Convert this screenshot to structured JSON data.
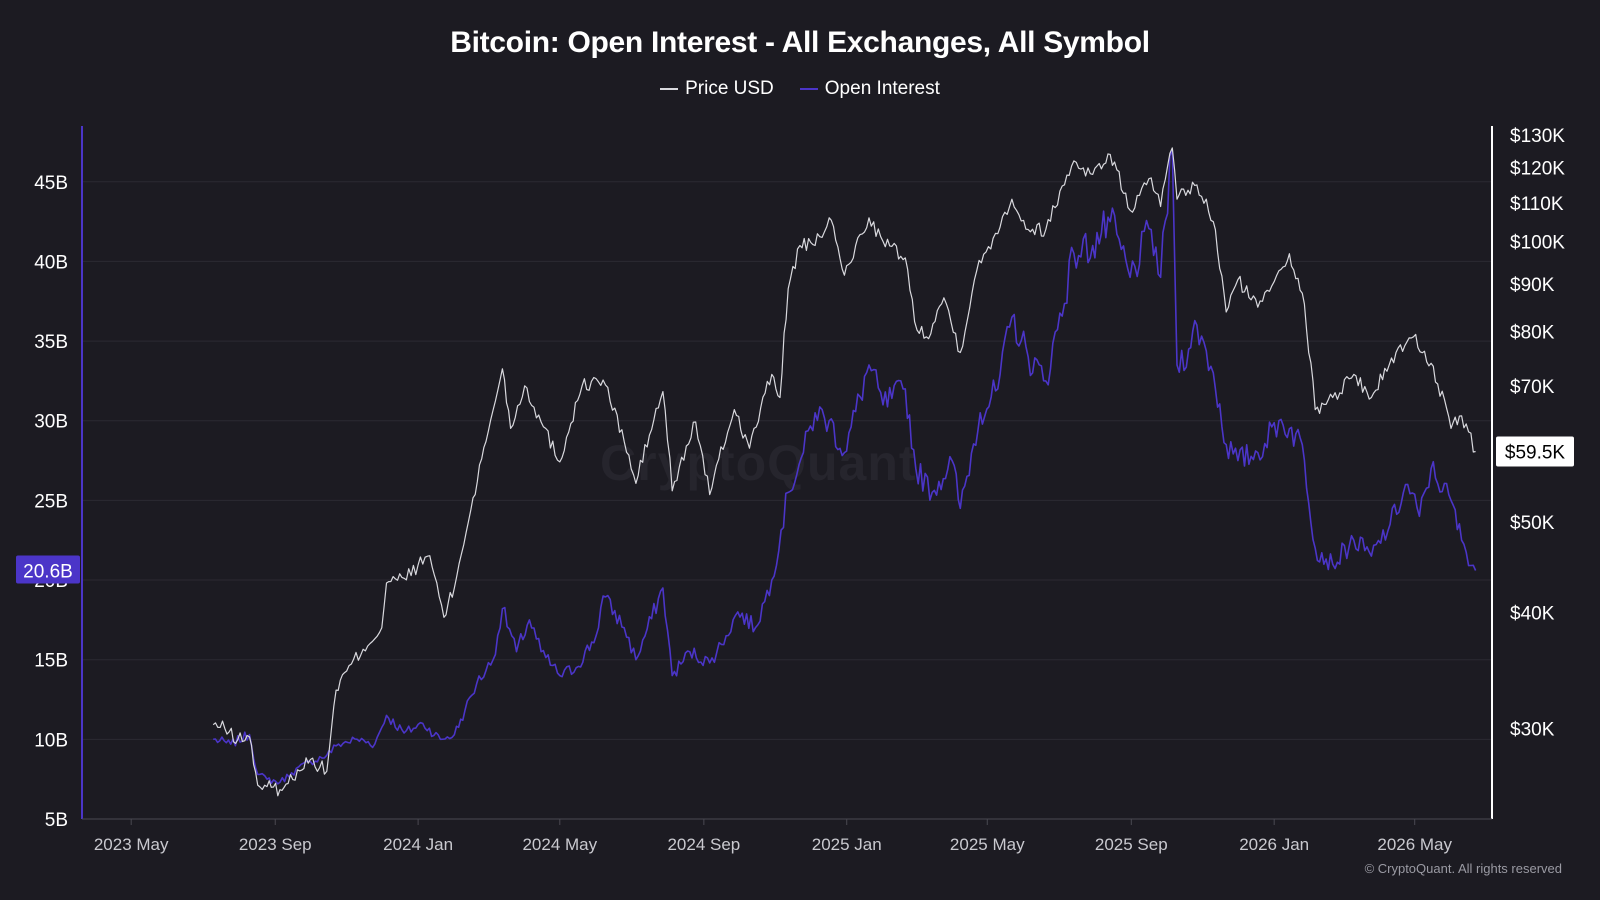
{
  "title": "Bitcoin: Open Interest - All Exchanges, All Symbol",
  "legend": [
    {
      "name": "Price USD",
      "color": "#d9d9de"
    },
    {
      "name": "Open Interest",
      "color": "#4b35c8"
    }
  ],
  "watermark": "CryptoQuant",
  "copyright": "© CryptoQuant. All rights reserved",
  "colors": {
    "background": "#1c1b22",
    "grid": "#2b2a33",
    "price_line": "#d9d9de",
    "oi_line": "#4b35c8",
    "oi_badge": "#4b35c8",
    "price_badge_bg": "#ffffff",
    "price_badge_text": "#000000"
  },
  "chart_data": {
    "type": "line",
    "title": "Bitcoin: Open Interest - All Exchanges, All Symbol",
    "x_tick_labels": [
      "2023 May",
      "2023 Sep",
      "2024 Jan",
      "2024 May",
      "2024 Sep",
      "2025 Jan",
      "2025 May",
      "2025 Sep",
      "2026 Jan",
      "2026 May"
    ],
    "x_tick_dates": [
      "2023-05-01",
      "2023-09-01",
      "2024-01-01",
      "2024-05-01",
      "2024-09-01",
      "2025-01-01",
      "2025-05-01",
      "2025-09-01",
      "2026-01-01",
      "2026-05-01"
    ],
    "x_range": [
      "2023-03-20",
      "2026-07-06"
    ],
    "left_axis": {
      "series": "Open Interest",
      "range": [
        5,
        48.5
      ],
      "ticks": [
        5,
        10,
        15,
        20,
        25,
        30,
        35,
        40,
        45
      ],
      "tick_labels": [
        "5B",
        "10B",
        "15B",
        "20B",
        "25B",
        "30B",
        "35B",
        "40B",
        "45B"
      ],
      "current_label": "20.6B",
      "current_value": 20.6
    },
    "right_axis": {
      "series": "Price USD",
      "scale": "log",
      "range": [
        24000,
        133000
      ],
      "ticks": [
        30000,
        40000,
        50000,
        70000,
        80000,
        90000,
        100000,
        110000,
        120000,
        130000
      ],
      "tick_labels": [
        "$30K",
        "$40K",
        "$50K",
        "$70K",
        "$80K",
        "$90K",
        "$100K",
        "$110K",
        "$120K",
        "$130K"
      ],
      "current_label": "$59.5K",
      "current_value": 59500
    },
    "grid": true,
    "legend_position": "top-center",
    "series": [
      {
        "name": "Price USD",
        "axis": "right",
        "points": [
          [
            "2023-07-10",
            30300
          ],
          [
            "2023-07-20",
            30000
          ],
          [
            "2023-07-31",
            29200
          ],
          [
            "2023-08-10",
            29400
          ],
          [
            "2023-08-17",
            26100
          ],
          [
            "2023-08-25",
            26000
          ],
          [
            "2023-09-05",
            25800
          ],
          [
            "2023-09-12",
            26200
          ],
          [
            "2023-09-20",
            27100
          ],
          [
            "2023-10-01",
            27800
          ],
          [
            "2023-10-15",
            27000
          ],
          [
            "2023-10-23",
            33000
          ],
          [
            "2023-11-01",
            34600
          ],
          [
            "2023-11-15",
            36500
          ],
          [
            "2023-12-01",
            38500
          ],
          [
            "2023-12-05",
            43000
          ],
          [
            "2023-12-20",
            43500
          ],
          [
            "2024-01-11",
            46000
          ],
          [
            "2024-01-23",
            39500
          ],
          [
            "2024-02-01",
            42500
          ],
          [
            "2024-02-15",
            51500
          ],
          [
            "2024-02-28",
            61000
          ],
          [
            "2024-03-13",
            73000
          ],
          [
            "2024-03-20",
            63000
          ],
          [
            "2024-04-01",
            70000
          ],
          [
            "2024-04-15",
            64000
          ],
          [
            "2024-05-01",
            58000
          ],
          [
            "2024-05-20",
            70000
          ],
          [
            "2024-06-07",
            71000
          ],
          [
            "2024-06-25",
            61000
          ],
          [
            "2024-07-05",
            55000
          ],
          [
            "2024-07-28",
            69000
          ],
          [
            "2024-08-05",
            54000
          ],
          [
            "2024-08-25",
            64000
          ],
          [
            "2024-09-06",
            53500
          ],
          [
            "2024-09-27",
            66000
          ],
          [
            "2024-10-10",
            60000
          ],
          [
            "2024-10-29",
            72000
          ],
          [
            "2024-11-05",
            68000
          ],
          [
            "2024-11-12",
            89000
          ],
          [
            "2024-11-22",
            99000
          ],
          [
            "2024-12-05",
            99000
          ],
          [
            "2024-12-17",
            106000
          ],
          [
            "2024-12-30",
            92000
          ],
          [
            "2025-01-20",
            106000
          ],
          [
            "2025-02-01",
            100000
          ],
          [
            "2025-02-20",
            96000
          ],
          [
            "2025-02-28",
            82000
          ],
          [
            "2025-03-10",
            79000
          ],
          [
            "2025-03-25",
            87000
          ],
          [
            "2025-04-08",
            76000
          ],
          [
            "2025-04-22",
            93000
          ],
          [
            "2025-05-08",
            102000
          ],
          [
            "2025-05-22",
            111000
          ],
          [
            "2025-06-05",
            103000
          ],
          [
            "2025-06-20",
            103000
          ],
          [
            "2025-07-14",
            122000
          ],
          [
            "2025-07-30",
            118000
          ],
          [
            "2025-08-14",
            124000
          ],
          [
            "2025-08-31",
            108000
          ],
          [
            "2025-09-18",
            117000
          ],
          [
            "2025-09-26",
            109000
          ],
          [
            "2025-10-06",
            126000
          ],
          [
            "2025-10-10",
            111000
          ],
          [
            "2025-10-27",
            115000
          ],
          [
            "2025-11-10",
            105000
          ],
          [
            "2025-11-21",
            84000
          ],
          [
            "2025-12-01",
            91000
          ],
          [
            "2025-12-18",
            85000
          ],
          [
            "2026-01-05",
            93000
          ],
          [
            "2026-01-14",
            97000
          ],
          [
            "2026-01-25",
            88000
          ],
          [
            "2026-02-05",
            66000
          ],
          [
            "2026-02-20",
            68000
          ],
          [
            "2026-03-10",
            72000
          ],
          [
            "2026-03-25",
            68000
          ],
          [
            "2026-04-15",
            76000
          ],
          [
            "2026-04-30",
            79000
          ],
          [
            "2026-05-15",
            74000
          ],
          [
            "2026-06-01",
            63000
          ],
          [
            "2026-06-10",
            65000
          ],
          [
            "2026-06-22",
            59500
          ]
        ]
      },
      {
        "name": "Open Interest",
        "axis": "left",
        "points": [
          [
            "2023-07-10",
            10.0
          ],
          [
            "2023-07-25",
            9.7
          ],
          [
            "2023-08-10",
            10.3
          ],
          [
            "2023-08-17",
            7.8
          ],
          [
            "2023-08-25",
            7.5
          ],
          [
            "2023-09-05",
            7.3
          ],
          [
            "2023-09-15",
            7.9
          ],
          [
            "2023-10-01",
            8.6
          ],
          [
            "2023-10-15",
            9.0
          ],
          [
            "2023-10-25",
            9.7
          ],
          [
            "2023-11-10",
            10.0
          ],
          [
            "2023-11-25",
            9.7
          ],
          [
            "2023-12-05",
            11.5
          ],
          [
            "2023-12-20",
            10.4
          ],
          [
            "2024-01-05",
            11.0
          ],
          [
            "2024-01-20",
            10.0
          ],
          [
            "2024-02-01",
            10.3
          ],
          [
            "2024-02-10",
            11.8
          ],
          [
            "2024-02-20",
            13.5
          ],
          [
            "2024-03-05",
            15.0
          ],
          [
            "2024-03-13",
            18.2
          ],
          [
            "2024-03-25",
            15.5
          ],
          [
            "2024-04-05",
            17.5
          ],
          [
            "2024-04-15",
            15.5
          ],
          [
            "2024-05-01",
            14.0
          ],
          [
            "2024-05-15",
            14.5
          ],
          [
            "2024-06-01",
            16.5
          ],
          [
            "2024-06-07",
            19.0
          ],
          [
            "2024-06-25",
            17.0
          ],
          [
            "2024-07-05",
            15.0
          ],
          [
            "2024-07-28",
            19.5
          ],
          [
            "2024-08-05",
            14.0
          ],
          [
            "2024-08-20",
            15.5
          ],
          [
            "2024-09-06",
            14.8
          ],
          [
            "2024-09-20",
            16.5
          ],
          [
            "2024-09-30",
            18.0
          ],
          [
            "2024-10-15",
            17.0
          ],
          [
            "2024-10-29",
            20.0
          ],
          [
            "2024-11-12",
            25.5
          ],
          [
            "2024-11-25",
            28.0
          ],
          [
            "2024-12-05",
            30.5
          ],
          [
            "2024-12-17",
            30.0
          ],
          [
            "2024-12-30",
            28.0
          ],
          [
            "2025-01-20",
            33.5
          ],
          [
            "2025-02-01",
            31.0
          ],
          [
            "2025-02-20",
            32.0
          ],
          [
            "2025-03-01",
            27.0
          ],
          [
            "2025-03-15",
            25.5
          ],
          [
            "2025-04-01",
            27.5
          ],
          [
            "2025-04-08",
            24.5
          ],
          [
            "2025-04-25",
            30.5
          ],
          [
            "2025-05-10",
            32.0
          ],
          [
            "2025-05-22",
            36.5
          ],
          [
            "2025-06-05",
            34.0
          ],
          [
            "2025-06-20",
            32.5
          ],
          [
            "2025-07-14",
            40.5
          ],
          [
            "2025-07-30",
            41.0
          ],
          [
            "2025-08-14",
            42.5
          ],
          [
            "2025-08-31",
            39.0
          ],
          [
            "2025-09-18",
            42.0
          ],
          [
            "2025-09-26",
            39.0
          ],
          [
            "2025-10-06",
            47.0
          ],
          [
            "2025-10-10",
            33.5
          ],
          [
            "2025-10-20",
            34.5
          ],
          [
            "2025-10-27",
            36.0
          ],
          [
            "2025-11-10",
            33.0
          ],
          [
            "2025-11-21",
            28.5
          ],
          [
            "2025-12-01",
            27.5
          ],
          [
            "2025-12-18",
            28.0
          ],
          [
            "2026-01-05",
            30.0
          ],
          [
            "2026-01-14",
            29.5
          ],
          [
            "2026-01-25",
            28.5
          ],
          [
            "2026-02-05",
            22.0
          ],
          [
            "2026-02-20",
            21.0
          ],
          [
            "2026-03-10",
            22.5
          ],
          [
            "2026-03-25",
            21.5
          ],
          [
            "2026-04-10",
            23.5
          ],
          [
            "2026-04-25",
            26.0
          ],
          [
            "2026-05-05",
            24.0
          ],
          [
            "2026-05-15",
            27.0
          ],
          [
            "2026-06-01",
            25.0
          ],
          [
            "2026-06-10",
            22.5
          ],
          [
            "2026-06-22",
            20.6
          ]
        ]
      }
    ]
  }
}
